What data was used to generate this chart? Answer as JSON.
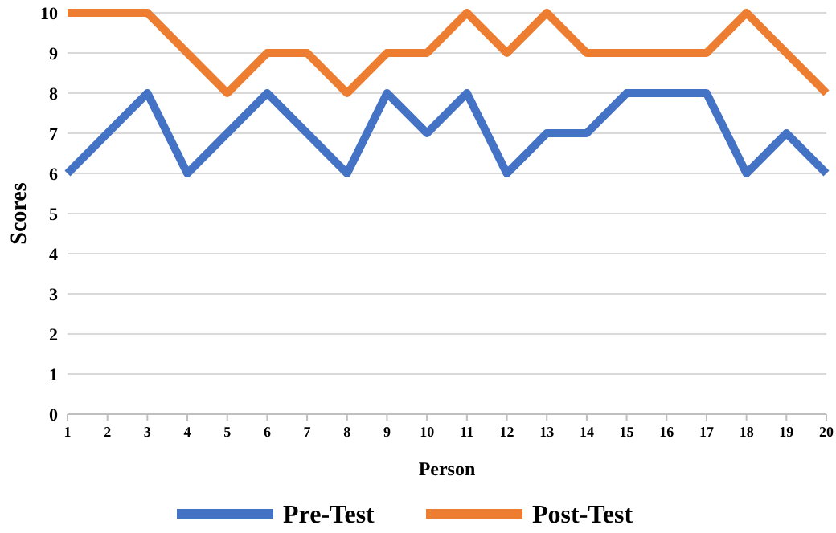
{
  "chart_data": {
    "type": "line",
    "xlabel": "Person",
    "ylabel": "Scores",
    "x": [
      1,
      2,
      3,
      4,
      5,
      6,
      7,
      8,
      9,
      10,
      11,
      12,
      13,
      14,
      15,
      16,
      17,
      18,
      19,
      20
    ],
    "xlim": [
      1,
      20
    ],
    "xticks": [
      1,
      2,
      3,
      4,
      5,
      6,
      7,
      8,
      9,
      10,
      11,
      12,
      13,
      14,
      15,
      16,
      17,
      18,
      19,
      20
    ],
    "ylim": [
      0,
      10
    ],
    "yticks": [
      0,
      1,
      2,
      3,
      4,
      5,
      6,
      7,
      8,
      9,
      10
    ],
    "grid": "y",
    "legend": "bottom",
    "marker": "none",
    "line_style": "solid",
    "series": [
      {
        "name": "Pre-Test",
        "color": "#4472c4",
        "values": [
          6,
          7,
          8,
          6,
          7,
          8,
          7,
          6,
          8,
          7,
          8,
          6,
          7,
          7,
          8,
          8,
          8,
          6,
          7,
          6
        ]
      },
      {
        "name": "Post-Test",
        "color": "#ed7d31",
        "values": [
          10,
          10,
          10,
          9,
          8,
          9,
          9,
          8,
          9,
          9,
          10,
          9,
          10,
          9,
          9,
          9,
          9,
          10,
          9,
          8
        ]
      }
    ]
  }
}
